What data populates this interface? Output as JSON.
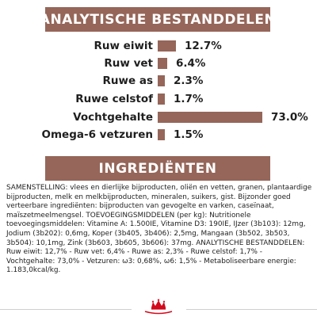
{
  "analysis": {
    "title": "ANALYTISCHE BESTANDDELEN",
    "rows": [
      {
        "label": "Ruw eiwit",
        "value": "12.7%",
        "percent": 12.7
      },
      {
        "label": "Ruw vet",
        "value": "6.4%",
        "percent": 6.4
      },
      {
        "label": "Ruwe as",
        "value": "2.3%",
        "percent": 2.3
      },
      {
        "label": "Ruwe celstof",
        "value": "1.7%",
        "percent": 1.7
      },
      {
        "label": "Vochtgehalte",
        "value": "73.0%",
        "percent": 73.0
      },
      {
        "label": "Omega-6 vetzuren",
        "value": "1.5%",
        "percent": 1.5
      }
    ]
  },
  "ingredients": {
    "title": "INGREDIËNTEN",
    "text": "SAMENSTELLING: vlees en dierlijke bijproducten, oliën en vetten, granen, plantaardige bijproducten, melk en melkbijproducten, mineralen, suikers, gist. Bijzonder goed verteerbare ingrediënten: bijproducten van gevogelte en varken, caseïnaat, maïszetmeelmengsel. TOEVOEGINGSMIDDELEN (per kg): Nutritionele toevoegingsmiddelen: Vitamine A: 1.500IE, Vitamine D3: 190IE, IJzer (3b103): 12mg, Jodium (3b202): 0,6mg, Koper (3b405, 3b406): 2,5mg, Mangaan (3b502, 3b503, 3b504): 10,1mg, Zink (3b603, 3b605, 3b606): 37mg. ANALYTISCHE BESTANDDELEN: Ruw eiwit: 12,7% - Ruw vet: 6,4% - Ruwe as: 2,3% - Ruwe celstof: 1,7% - Vochtgehalte: 73,0% - Vetzuren: ω3: 0,68%, ω6: 1,5% - Metaboliseerbare energie: 1.183,0kcal/kg."
  },
  "footer": {
    "logo": "ROYAL CANIN"
  },
  "colors": {
    "accent": "#956659",
    "logo_red": "#d3091c"
  }
}
